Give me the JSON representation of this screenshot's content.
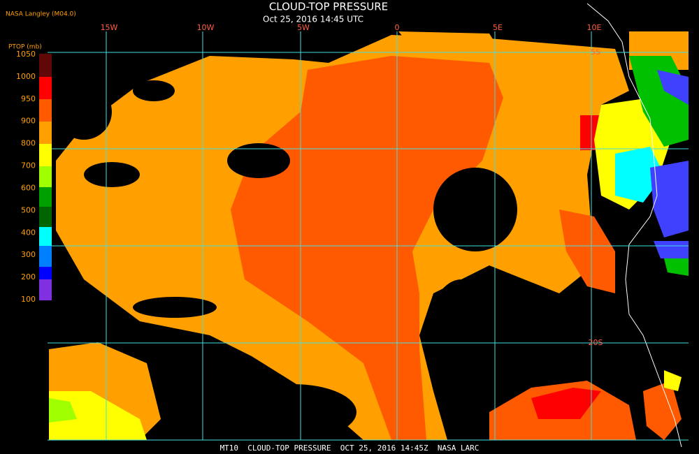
{
  "header": {
    "title": "CLOUD-TOP PRESSURE",
    "subtitle": "Oct 25, 2016 14:45 UTC",
    "credit": "NASA Langley (M04.0)"
  },
  "colorbar": {
    "label": "PTOP (mb)",
    "ticks": [
      1050,
      1000,
      950,
      900,
      800,
      700,
      600,
      500,
      400,
      300,
      200,
      100
    ]
  },
  "grid": {
    "lon_labels": [
      "15W",
      "10W",
      "5W",
      "0",
      "5E",
      "10E"
    ],
    "lat_labels": [
      "5S",
      "20S"
    ]
  },
  "footer": "MT10  CLOUD-TOP PRESSURE  OCT 25, 2016 14:45Z  NASA LARC"
}
